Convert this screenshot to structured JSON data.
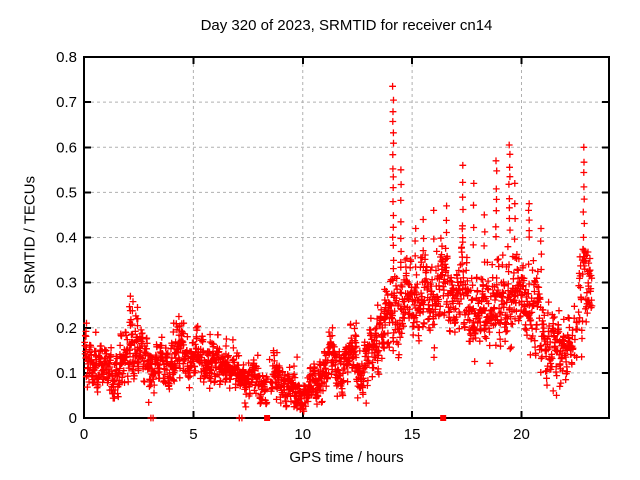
{
  "chart_data": {
    "type": "scatter",
    "title": "Day 320 of 2023, SRMTID for receiver cn14",
    "xlabel": "GPS time / hours",
    "ylabel": "SRMTID / TECUs",
    "xlim": [
      0,
      24
    ],
    "ylim": [
      0,
      0.8
    ],
    "xticks": [
      0,
      5,
      10,
      15,
      20
    ],
    "xtick_labels": [
      "0",
      "5",
      "10",
      "15",
      "20"
    ],
    "yticks": [
      0,
      0.1,
      0.2,
      0.3,
      0.4,
      0.5,
      0.6,
      0.7,
      0.8
    ],
    "ytick_labels": [
      "0",
      "0.1",
      "0.2",
      "0.3",
      "0.4",
      "0.5",
      "0.6",
      "0.7",
      "0.8"
    ],
    "grid": true,
    "legend": "none",
    "marker": "plus",
    "marker_color": "#ff0000",
    "grid_color": "#b0b0b0",
    "axis_color": "#000000",
    "background_color": "#ffffff",
    "seed": 20233,
    "points_per_hour": 95,
    "x_start": 0.03,
    "x_end": 23.22,
    "band_anchors": [
      [
        0.0,
        0.125,
        0.045
      ],
      [
        0.5,
        0.115,
        0.04
      ],
      [
        1.0,
        0.105,
        0.04
      ],
      [
        1.5,
        0.1,
        0.045
      ],
      [
        2.0,
        0.14,
        0.055
      ],
      [
        2.2,
        0.16,
        0.058
      ],
      [
        2.5,
        0.145,
        0.05
      ],
      [
        3.0,
        0.115,
        0.045
      ],
      [
        3.5,
        0.115,
        0.04
      ],
      [
        4.0,
        0.125,
        0.045
      ],
      [
        4.35,
        0.14,
        0.048
      ],
      [
        4.8,
        0.13,
        0.04
      ],
      [
        5.2,
        0.135,
        0.04
      ],
      [
        5.6,
        0.12,
        0.04
      ],
      [
        6.0,
        0.115,
        0.04
      ],
      [
        6.4,
        0.12,
        0.04
      ],
      [
        6.8,
        0.105,
        0.04
      ],
      [
        7.2,
        0.095,
        0.038
      ],
      [
        7.6,
        0.085,
        0.035
      ],
      [
        8.0,
        0.085,
        0.035
      ],
      [
        8.4,
        0.08,
        0.033
      ],
      [
        8.7,
        0.09,
        0.038
      ],
      [
        9.0,
        0.085,
        0.038
      ],
      [
        9.4,
        0.07,
        0.034
      ],
      [
        9.8,
        0.05,
        0.028
      ],
      [
        10.0,
        0.045,
        0.026
      ],
      [
        10.3,
        0.065,
        0.032
      ],
      [
        10.7,
        0.09,
        0.04
      ],
      [
        11.1,
        0.115,
        0.045
      ],
      [
        11.4,
        0.13,
        0.045
      ],
      [
        11.7,
        0.1,
        0.04
      ],
      [
        12.0,
        0.12,
        0.045
      ],
      [
        12.3,
        0.145,
        0.05
      ],
      [
        12.7,
        0.1,
        0.045
      ],
      [
        13.0,
        0.13,
        0.05
      ],
      [
        13.3,
        0.165,
        0.055
      ],
      [
        13.7,
        0.19,
        0.06
      ],
      [
        14.0,
        0.22,
        0.07
      ],
      [
        14.2,
        0.255,
        0.085
      ],
      [
        14.5,
        0.22,
        0.08
      ],
      [
        14.8,
        0.26,
        0.07
      ],
      [
        15.1,
        0.27,
        0.07
      ],
      [
        15.4,
        0.25,
        0.07
      ],
      [
        15.7,
        0.27,
        0.07
      ],
      [
        16.0,
        0.26,
        0.07
      ],
      [
        16.3,
        0.3,
        0.07
      ],
      [
        16.6,
        0.28,
        0.07
      ],
      [
        17.0,
        0.26,
        0.07
      ],
      [
        17.3,
        0.29,
        0.078
      ],
      [
        17.7,
        0.25,
        0.078
      ],
      [
        18.0,
        0.22,
        0.07
      ],
      [
        18.4,
        0.25,
        0.078
      ],
      [
        18.8,
        0.24,
        0.08
      ],
      [
        19.2,
        0.26,
        0.08
      ],
      [
        19.5,
        0.28,
        0.088
      ],
      [
        19.9,
        0.24,
        0.08
      ],
      [
        20.3,
        0.27,
        0.08
      ],
      [
        20.7,
        0.22,
        0.08
      ],
      [
        21.0,
        0.19,
        0.07
      ],
      [
        21.4,
        0.16,
        0.06
      ],
      [
        21.8,
        0.155,
        0.058
      ],
      [
        22.1,
        0.17,
        0.055
      ],
      [
        22.4,
        0.15,
        0.05
      ],
      [
        22.7,
        0.28,
        0.09
      ],
      [
        22.9,
        0.36,
        0.1
      ],
      [
        23.05,
        0.3,
        0.06
      ],
      [
        23.2,
        0.28,
        0.05
      ]
    ],
    "spike_columns": [
      [
        0.1,
        0.16,
        0.21,
        3
      ],
      [
        0.55,
        0.15,
        0.19,
        2
      ],
      [
        2.1,
        0.2,
        0.27,
        5
      ],
      [
        2.22,
        0.18,
        0.258,
        4
      ],
      [
        2.45,
        0.18,
        0.245,
        4
      ],
      [
        4.1,
        0.16,
        0.21,
        3
      ],
      [
        4.35,
        0.17,
        0.225,
        4
      ],
      [
        4.55,
        0.16,
        0.21,
        3
      ],
      [
        5.15,
        0.16,
        0.2,
        3
      ],
      [
        5.75,
        0.15,
        0.185,
        3
      ],
      [
        6.5,
        0.14,
        0.175,
        3
      ],
      [
        8.8,
        0.11,
        0.145,
        2
      ],
      [
        11.35,
        0.16,
        0.2,
        3
      ],
      [
        12.45,
        0.16,
        0.21,
        3
      ],
      [
        13.4,
        0.2,
        0.25,
        3
      ],
      [
        13.75,
        0.22,
        0.285,
        4
      ],
      [
        14.13,
        0.3,
        0.735,
        18
      ],
      [
        14.5,
        0.33,
        0.55,
        7
      ],
      [
        15.15,
        0.33,
        0.42,
        4
      ],
      [
        15.5,
        0.33,
        0.44,
        4
      ],
      [
        16.0,
        0.4,
        0.46,
        2
      ],
      [
        16.55,
        0.35,
        0.47,
        5
      ],
      [
        17.3,
        0.36,
        0.56,
        7
      ],
      [
        17.8,
        0.38,
        0.52,
        4
      ],
      [
        18.3,
        0.34,
        0.45,
        4
      ],
      [
        18.85,
        0.4,
        0.57,
        7
      ],
      [
        19.45,
        0.42,
        0.605,
        9
      ],
      [
        19.7,
        0.36,
        0.52,
        5
      ],
      [
        20.35,
        0.4,
        0.475,
        5
      ],
      [
        20.9,
        0.33,
        0.42,
        4
      ],
      [
        22.85,
        0.4,
        0.6,
        8
      ],
      [
        23.1,
        0.26,
        0.32,
        3
      ]
    ],
    "outlier_points": [
      [
        9.6,
        0.025
      ],
      [
        9.9,
        0.02
      ],
      [
        10.05,
        0.015
      ],
      [
        12.9,
        0.033
      ],
      [
        21.45,
        0.06
      ],
      [
        21.6,
        0.05
      ],
      [
        21.75,
        0.07
      ],
      [
        9.74,
        0.135
      ]
    ],
    "zero_plus_points": [
      [
        3.06,
        0
      ],
      [
        3.16,
        0
      ],
      [
        7.1,
        0
      ],
      [
        7.22,
        0
      ]
    ],
    "square_markers": [
      [
        8.37,
        0
      ],
      [
        16.42,
        0
      ]
    ],
    "density_gaps": [
      [
        7.55,
        8.25,
        0.7
      ],
      [
        8.3,
        8.6,
        0.45
      ],
      [
        22.35,
        22.62,
        0.35
      ]
    ]
  }
}
